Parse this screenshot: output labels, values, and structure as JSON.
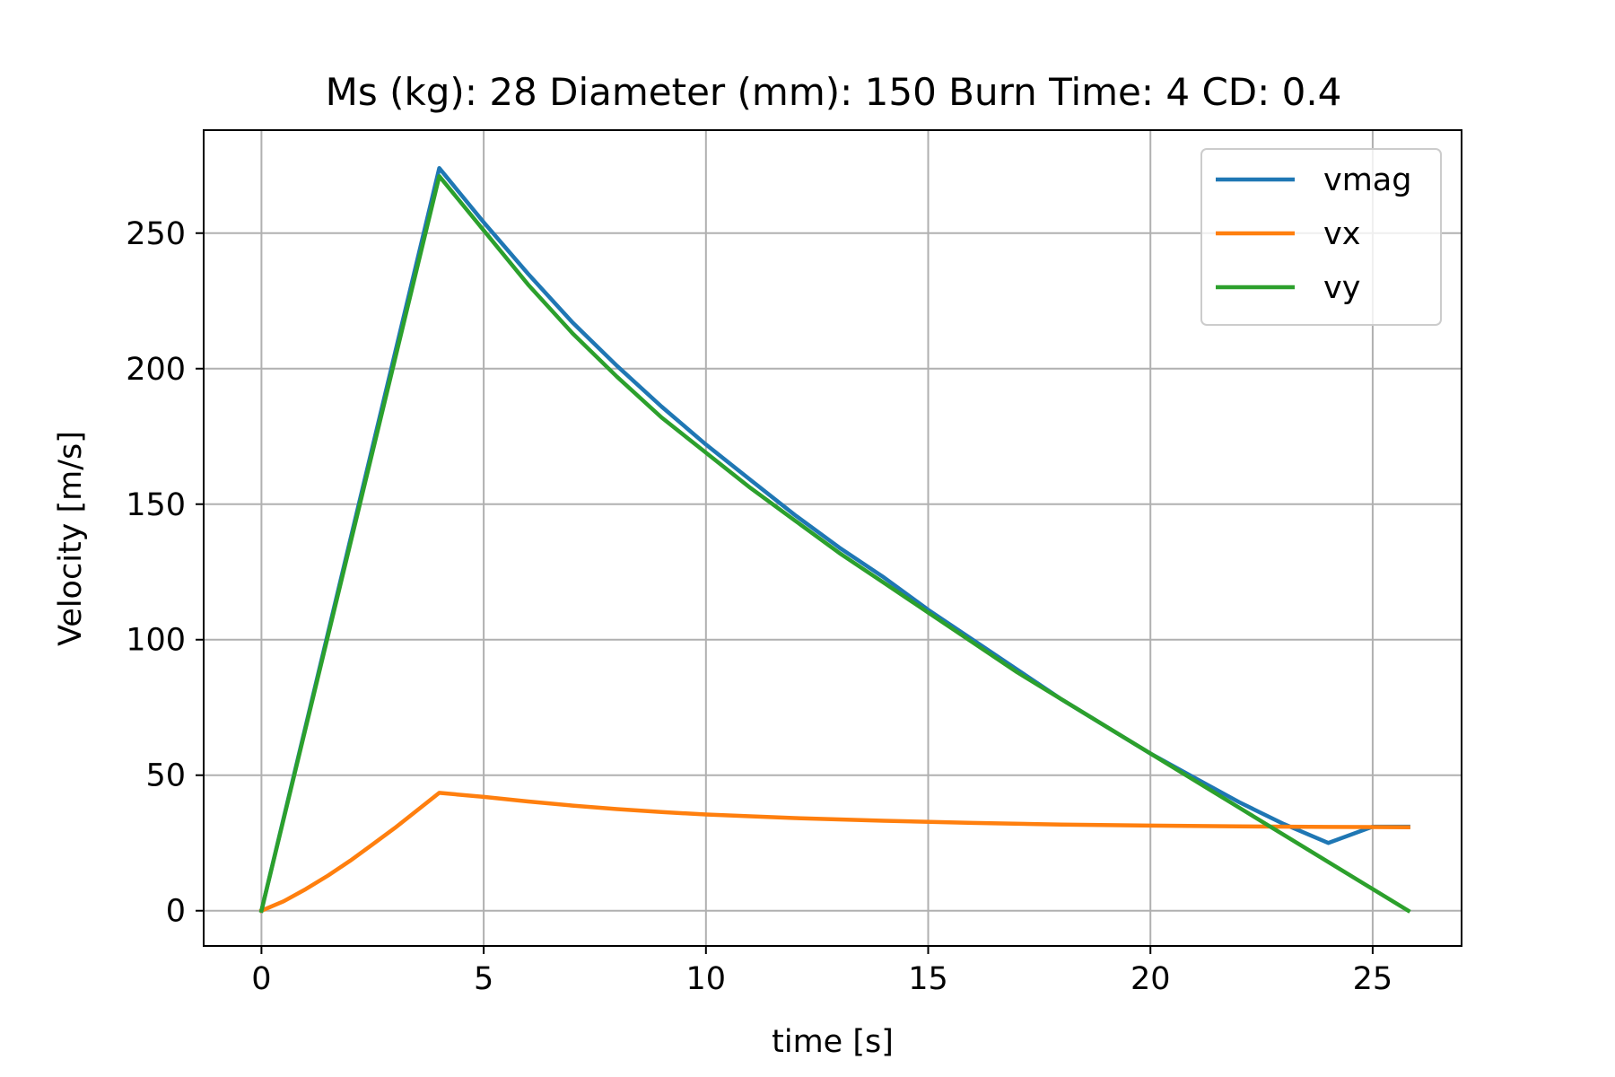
{
  "chart_data": {
    "type": "line",
    "title": "Ms (kg): 28 Diameter (mm): 150 Burn Time: 4 CD: 0.4",
    "xlabel": "time [s]",
    "ylabel": "Velocity [m/s]",
    "xlim": [
      -1.3,
      27.0
    ],
    "ylim": [
      -13,
      288
    ],
    "xticks": [
      0,
      5,
      10,
      15,
      20,
      25
    ],
    "xtick_labels": [
      "0",
      "5",
      "10",
      "15",
      "20",
      "25"
    ],
    "yticks": [
      0,
      50,
      100,
      150,
      200,
      250
    ],
    "ytick_labels": [
      "0",
      "50",
      "100",
      "150",
      "200",
      "250"
    ],
    "grid": true,
    "legend_position": "top-right",
    "series": [
      {
        "name": "vmag",
        "color": "#1f77b4",
        "x": [
          0,
          4,
          5,
          6,
          7,
          8,
          9,
          10,
          11,
          12,
          13,
          14,
          15,
          16,
          17,
          18,
          19,
          20,
          21,
          22,
          23,
          24,
          25,
          25.8
        ],
        "y": [
          0,
          274,
          254,
          235,
          217,
          201,
          186,
          172,
          159,
          146,
          134,
          123,
          111,
          100,
          89,
          78,
          68,
          58,
          49,
          40,
          32,
          25,
          31,
          31
        ]
      },
      {
        "name": "vx",
        "color": "#ff7f0e",
        "x": [
          0,
          0.5,
          1,
          1.5,
          2,
          2.5,
          3,
          3.5,
          4,
          5,
          6,
          7,
          8,
          9,
          10,
          12,
          14,
          16,
          18,
          20,
          22,
          24,
          25.8
        ],
        "y": [
          0,
          3.5,
          8,
          13,
          18.5,
          24.5,
          30.5,
          37,
          43.5,
          42,
          40.3,
          38.8,
          37.5,
          36.4,
          35.5,
          34.2,
          33.2,
          32.4,
          31.8,
          31.4,
          31.1,
          30.9,
          30.8
        ]
      },
      {
        "name": "vy",
        "color": "#2ca02c",
        "x": [
          0,
          4,
          5,
          6,
          7,
          8,
          9,
          10,
          11,
          12,
          13,
          14,
          15,
          16,
          17,
          18,
          19,
          20,
          21,
          22,
          23,
          24,
          25,
          25.8
        ],
        "y": [
          0,
          271,
          251,
          231,
          213,
          197,
          182,
          169,
          156,
          144,
          132,
          121,
          110,
          99,
          88,
          78,
          68,
          58,
          48,
          38,
          28,
          18,
          8,
          0
        ]
      }
    ]
  }
}
